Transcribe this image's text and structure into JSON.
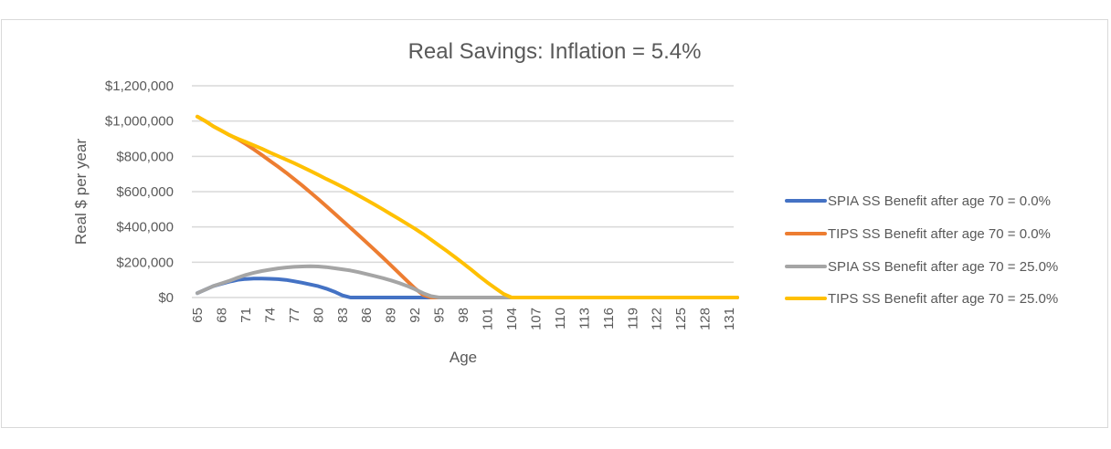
{
  "chart_data": {
    "type": "line",
    "title": "Real Savings:   Inflation =   5.4%",
    "xlabel": "Age",
    "ylabel": "Real $ per year",
    "ylim": [
      0,
      1200000
    ],
    "xlim": [
      65,
      132
    ],
    "grid": true,
    "legend_position": "right",
    "y_ticks": [
      "$0",
      "$200,000",
      "$400,000",
      "$600,000",
      "$800,000",
      "$1,000,000",
      "$1,200,000"
    ],
    "y_tick_values": [
      0,
      200000,
      400000,
      600000,
      800000,
      1000000,
      1200000
    ],
    "x_ticks": [
      "65",
      "68",
      "71",
      "74",
      "77",
      "80",
      "83",
      "86",
      "89",
      "92",
      "95",
      "98",
      "101",
      "104",
      "107",
      "110",
      "113",
      "116",
      "119",
      "122",
      "125",
      "128",
      "131"
    ],
    "series": [
      {
        "name": "SPIA SS Benefit after age 70 =   0.0%",
        "color": "#4472C4",
        "points": [
          [
            65,
            25000
          ],
          [
            66,
            45000
          ],
          [
            67,
            65000
          ],
          [
            68,
            78000
          ],
          [
            69,
            90000
          ],
          [
            70,
            100000
          ],
          [
            71,
            105000
          ],
          [
            72,
            107000
          ],
          [
            73,
            107000
          ],
          [
            74,
            106000
          ],
          [
            75,
            104000
          ],
          [
            76,
            100000
          ],
          [
            77,
            92000
          ],
          [
            78,
            84000
          ],
          [
            79,
            74000
          ],
          [
            80,
            64000
          ],
          [
            81,
            50000
          ],
          [
            82,
            33000
          ],
          [
            83,
            12000
          ],
          [
            84,
            0
          ],
          [
            132,
            0
          ]
        ]
      },
      {
        "name": "TIPS SS Benefit after age 70 =   0.0%",
        "color": "#ED7D31",
        "points": [
          [
            65,
            1025000
          ],
          [
            66,
            1000000
          ],
          [
            67,
            970000
          ],
          [
            68,
            945000
          ],
          [
            69,
            920000
          ],
          [
            70,
            898000
          ],
          [
            71,
            870000
          ],
          [
            72,
            840000
          ],
          [
            73,
            808000
          ],
          [
            74,
            775000
          ],
          [
            75,
            742000
          ],
          [
            76,
            708000
          ],
          [
            77,
            672000
          ],
          [
            78,
            635000
          ],
          [
            79,
            597000
          ],
          [
            80,
            558000
          ],
          [
            81,
            518000
          ],
          [
            82,
            477000
          ],
          [
            83,
            436000
          ],
          [
            84,
            395000
          ],
          [
            85,
            354000
          ],
          [
            86,
            312000
          ],
          [
            87,
            270000
          ],
          [
            88,
            227000
          ],
          [
            89,
            183000
          ],
          [
            90,
            139000
          ],
          [
            91,
            95000
          ],
          [
            92,
            52000
          ],
          [
            93,
            15000
          ],
          [
            94,
            0
          ],
          [
            132,
            0
          ]
        ]
      },
      {
        "name": "SPIA SS Benefit after age 70 =   25.0%",
        "color": "#A5A5A5",
        "points": [
          [
            65,
            25000
          ],
          [
            66,
            45000
          ],
          [
            67,
            65000
          ],
          [
            68,
            80000
          ],
          [
            69,
            95000
          ],
          [
            70,
            112000
          ],
          [
            71,
            128000
          ],
          [
            72,
            140000
          ],
          [
            73,
            150000
          ],
          [
            74,
            158000
          ],
          [
            75,
            165000
          ],
          [
            76,
            170000
          ],
          [
            77,
            174000
          ],
          [
            78,
            176000
          ],
          [
            79,
            177000
          ],
          [
            80,
            176000
          ],
          [
            81,
            172000
          ],
          [
            82,
            166000
          ],
          [
            83,
            160000
          ],
          [
            84,
            153000
          ],
          [
            85,
            144000
          ],
          [
            86,
            133000
          ],
          [
            87,
            122000
          ],
          [
            88,
            110000
          ],
          [
            89,
            97000
          ],
          [
            90,
            83000
          ],
          [
            91,
            66000
          ],
          [
            92,
            47000
          ],
          [
            93,
            25000
          ],
          [
            94,
            8000
          ],
          [
            95,
            0
          ],
          [
            132,
            0
          ]
        ]
      },
      {
        "name": "TIPS SS Benefit after age 70 =   25.0%",
        "color": "#FFC000",
        "points": [
          [
            65,
            1025000
          ],
          [
            66,
            1000000
          ],
          [
            67,
            970000
          ],
          [
            68,
            945000
          ],
          [
            69,
            920000
          ],
          [
            70,
            900000
          ],
          [
            71,
            882000
          ],
          [
            72,
            863000
          ],
          [
            73,
            843000
          ],
          [
            74,
            822000
          ],
          [
            75,
            802000
          ],
          [
            76,
            782000
          ],
          [
            77,
            762000
          ],
          [
            78,
            740000
          ],
          [
            79,
            718000
          ],
          [
            80,
            695000
          ],
          [
            81,
            672000
          ],
          [
            82,
            650000
          ],
          [
            83,
            627000
          ],
          [
            84,
            603000
          ],
          [
            85,
            578000
          ],
          [
            86,
            553000
          ],
          [
            87,
            527000
          ],
          [
            88,
            500000
          ],
          [
            89,
            473000
          ],
          [
            90,
            446000
          ],
          [
            91,
            418000
          ],
          [
            92,
            390000
          ],
          [
            93,
            360000
          ],
          [
            94,
            328000
          ],
          [
            95,
            295000
          ],
          [
            96,
            262000
          ],
          [
            97,
            228000
          ],
          [
            98,
            193000
          ],
          [
            99,
            157000
          ],
          [
            100,
            120000
          ],
          [
            101,
            85000
          ],
          [
            102,
            52000
          ],
          [
            103,
            20000
          ],
          [
            104,
            0
          ],
          [
            132,
            0
          ]
        ]
      }
    ]
  }
}
